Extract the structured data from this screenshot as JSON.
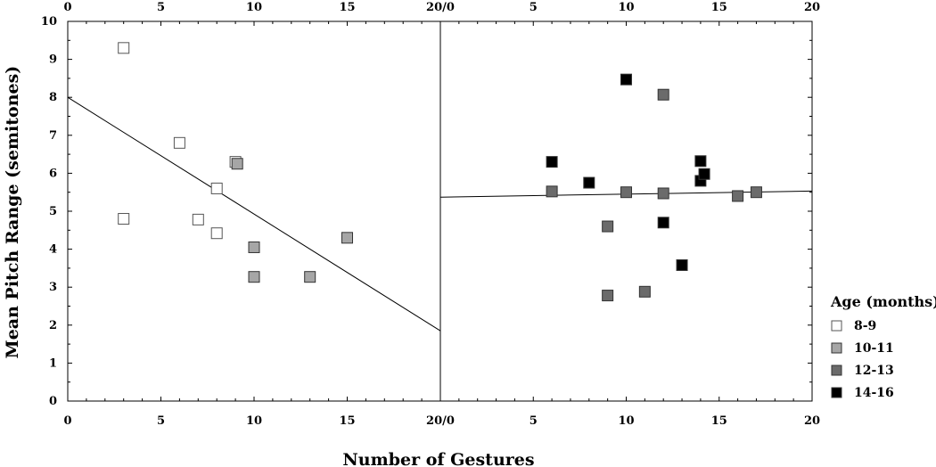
{
  "chart_data": {
    "type": "scatter",
    "xlabel": "Number of Gestures",
    "ylabel": "Mean Pitch Range (semitones)",
    "ylim": [
      0,
      10
    ],
    "y_ticks": [
      "0",
      "1",
      "2",
      "3",
      "4",
      "5",
      "6",
      "7",
      "8",
      "9",
      "10"
    ],
    "x_ticks_left": [
      "0",
      "5",
      "10",
      "15",
      "20/0"
    ],
    "x_ticks_right": [
      "5",
      "10",
      "15",
      "20"
    ],
    "legend": {
      "title": "Age (months)",
      "placement": "right",
      "entries": [
        {
          "label": "8-9",
          "color": "#ffffff"
        },
        {
          "label": "10-11",
          "color": "#a6a6a6"
        },
        {
          "label": "12-13",
          "color": "#6b6b6b"
        },
        {
          "label": "14-16",
          "color": "#000000"
        }
      ]
    },
    "panels": [
      {
        "xlim": [
          0,
          20
        ],
        "fit_line": {
          "x": [
            0,
            20
          ],
          "y": [
            8.0,
            1.85
          ]
        },
        "series": [
          {
            "name": "8-9",
            "points": [
              [
                3,
                9.3
              ],
              [
                3,
                4.8
              ],
              [
                6,
                6.8
              ],
              [
                7,
                4.78
              ],
              [
                8,
                5.6
              ],
              [
                8,
                4.42
              ],
              [
                9,
                6.3
              ]
            ]
          },
          {
            "name": "10-11",
            "points": [
              [
                9.1,
                6.25
              ],
              [
                10,
                4.05
              ],
              [
                10,
                3.27
              ],
              [
                13,
                3.27
              ],
              [
                15,
                4.3
              ]
            ]
          }
        ]
      },
      {
        "xlim": [
          0,
          20
        ],
        "fit_line": {
          "x": [
            0,
            20
          ],
          "y": [
            5.37,
            5.53
          ]
        },
        "series": [
          {
            "name": "12-13",
            "points": [
              [
                6,
                5.52
              ],
              [
                9,
                4.6
              ],
              [
                9,
                2.78
              ],
              [
                10,
                5.5
              ],
              [
                11,
                2.88
              ],
              [
                12,
                8.07
              ],
              [
                12,
                5.47
              ],
              [
                16,
                5.4
              ],
              [
                17,
                5.5
              ]
            ]
          },
          {
            "name": "14-16",
            "points": [
              [
                6,
                6.3
              ],
              [
                8,
                5.75
              ],
              [
                10,
                8.47
              ],
              [
                12,
                4.7
              ],
              [
                13,
                3.58
              ],
              [
                14,
                6.32
              ],
              [
                14,
                5.8
              ],
              [
                14.2,
                5.98
              ]
            ]
          }
        ]
      }
    ]
  }
}
